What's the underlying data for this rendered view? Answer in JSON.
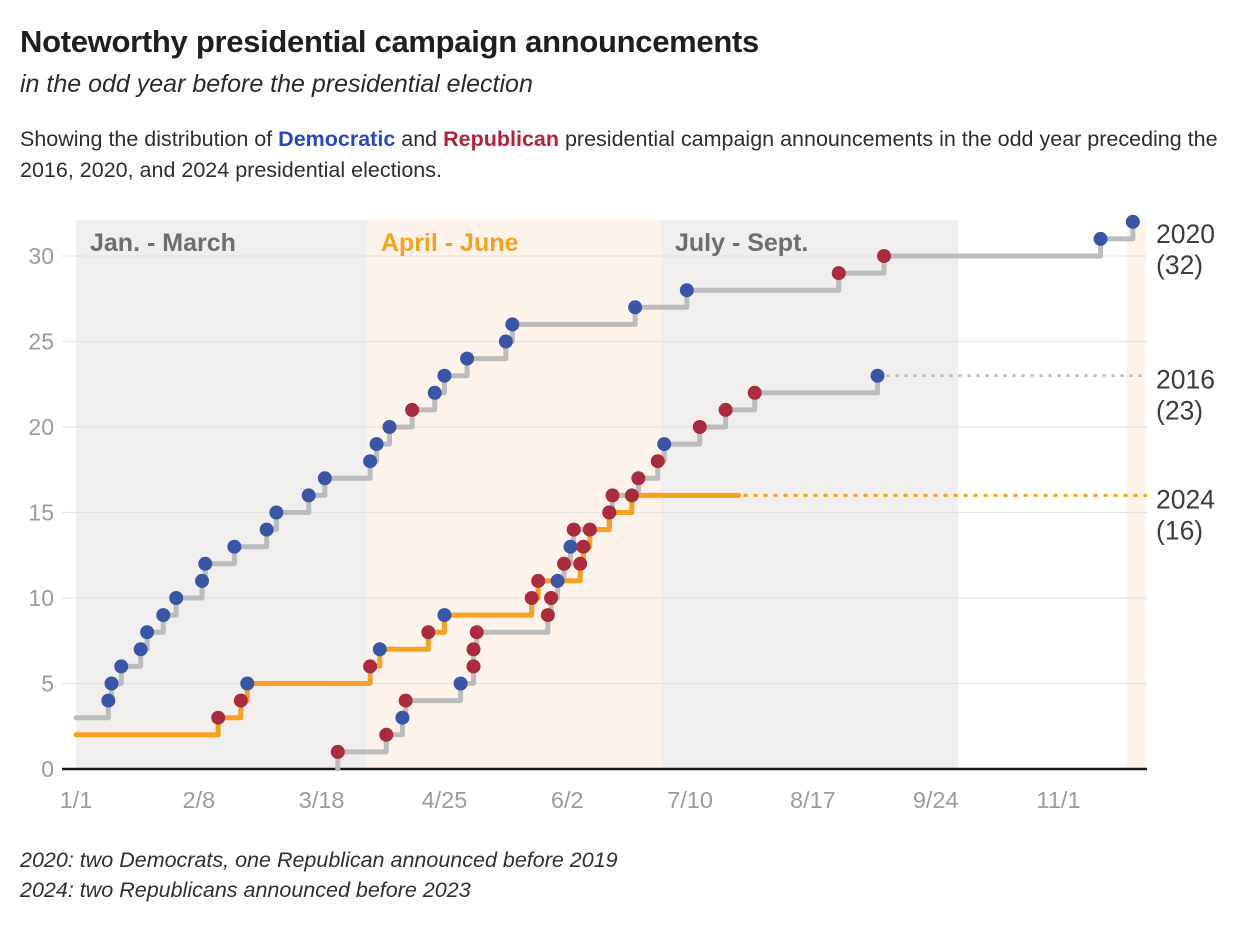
{
  "header": {
    "title": "Noteworthy presidential campaign announcements",
    "subtitle": "in the odd year before the presidential election",
    "description": {
      "part1": "Showing the distribution of ",
      "democratic_word": "Democratic",
      "and_word": " and ",
      "republican_word": "Republican",
      "part2": " presidential campaign announcements in the odd year preceding the 2016, 2020, and 2024 presidential elections."
    }
  },
  "footnotes": {
    "line1": "2020: two Democrats, one Republican announced before 2019",
    "line2": "2024: two Republicans announced before 2023"
  },
  "colors": {
    "democrat_dot": "#3a55a5",
    "republican_dot": "#aa2b3d",
    "gray_line": "#bcbcbc",
    "orange_line": "#f5a122",
    "democratic_text": "#2b47c2",
    "republican_text": "#b3233c",
    "axis_label": "#9b9b9b",
    "band_gray": "#f0efed",
    "band_cream": "#fdf3ea",
    "gridline": "#e3e3e3",
    "axis_line": "#1a1a1a",
    "right_label": "#3d3d3d",
    "band_label_gray": "#6e6e6e"
  },
  "chart_data": {
    "type": "line",
    "subtype": "cumulative-step",
    "x_axis": {
      "ticks": [
        "1/1",
        "2/8",
        "3/18",
        "4/25",
        "6/2",
        "7/10",
        "8/17",
        "9/24",
        "11/1"
      ]
    },
    "y_axis": {
      "ticks": [
        0,
        5,
        10,
        15,
        20,
        25,
        30
      ],
      "range": [
        0,
        32
      ],
      "grid": true
    },
    "bands": [
      {
        "label": "Jan. - March",
        "start": "1/1",
        "end": "4/1",
        "fill": "#f0efed",
        "label_color": "#6e6e6e"
      },
      {
        "label": "April - June",
        "start": "4/1",
        "end": "7/1",
        "fill": "#fdf3ea",
        "label_color": "#f5a122"
      },
      {
        "label": "July - Sept.",
        "start": "7/1",
        "end": "10/1",
        "fill": "#f0efed",
        "label_color": "#6e6e6e"
      },
      {
        "label": "",
        "start": "11/22",
        "end": "11/28",
        "fill": "#fdf3ea",
        "label_color": ""
      }
    ],
    "series": [
      {
        "name": "2020",
        "total": 32,
        "start_value": 3,
        "start_at_left": true,
        "line_color": "#bcbcbc",
        "dashed_to_edge": false,
        "label_line1": "2020",
        "label_line2": "(32)",
        "points": [
          {
            "date": "1/11",
            "party": "D",
            "cumulative": 4
          },
          {
            "date": "1/12",
            "party": "D",
            "cumulative": 5
          },
          {
            "date": "1/15",
            "party": "D",
            "cumulative": 6
          },
          {
            "date": "1/21",
            "party": "D",
            "cumulative": 7
          },
          {
            "date": "1/23",
            "party": "D",
            "cumulative": 8
          },
          {
            "date": "1/28",
            "party": "D",
            "cumulative": 9
          },
          {
            "date": "2/1",
            "party": "D",
            "cumulative": 10
          },
          {
            "date": "2/9",
            "party": "D",
            "cumulative": 11
          },
          {
            "date": "2/10",
            "party": "D",
            "cumulative": 12
          },
          {
            "date": "2/19",
            "party": "D",
            "cumulative": 13
          },
          {
            "date": "3/1",
            "party": "D",
            "cumulative": 14
          },
          {
            "date": "3/4",
            "party": "D",
            "cumulative": 15
          },
          {
            "date": "3/14",
            "party": "D",
            "cumulative": 16
          },
          {
            "date": "3/19",
            "party": "D",
            "cumulative": 17
          },
          {
            "date": "4/2",
            "party": "D",
            "cumulative": 18
          },
          {
            "date": "4/4",
            "party": "D",
            "cumulative": 19
          },
          {
            "date": "4/8",
            "party": "D",
            "cumulative": 20
          },
          {
            "date": "4/15",
            "party": "R",
            "cumulative": 21
          },
          {
            "date": "4/22",
            "party": "D",
            "cumulative": 22
          },
          {
            "date": "4/25",
            "party": "D",
            "cumulative": 23
          },
          {
            "date": "5/2",
            "party": "D",
            "cumulative": 24
          },
          {
            "date": "5/14",
            "party": "D",
            "cumulative": 25
          },
          {
            "date": "5/16",
            "party": "D",
            "cumulative": 26
          },
          {
            "date": "6/23",
            "party": "D",
            "cumulative": 27
          },
          {
            "date": "7/9",
            "party": "D",
            "cumulative": 28
          },
          {
            "date": "8/25",
            "party": "R",
            "cumulative": 29
          },
          {
            "date": "9/8",
            "party": "R",
            "cumulative": 30
          },
          {
            "date": "11/14",
            "party": "D",
            "cumulative": 31
          },
          {
            "date": "11/24",
            "party": "D",
            "cumulative": 32
          }
        ]
      },
      {
        "name": "2016",
        "total": 23,
        "start_value": 0,
        "start_at_left": false,
        "line_color": "#bcbcbc",
        "dashed_to_edge": true,
        "dash_color": "#b8b8b8",
        "label_line1": "2016",
        "label_line2": "(23)",
        "points": [
          {
            "date": "3/23",
            "party": "R",
            "cumulative": 1
          },
          {
            "date": "4/7",
            "party": "R",
            "cumulative": 2
          },
          {
            "date": "4/12",
            "party": "D",
            "cumulative": 3
          },
          {
            "date": "4/13",
            "party": "R",
            "cumulative": 4
          },
          {
            "date": "4/30",
            "party": "D",
            "cumulative": 5
          },
          {
            "date": "5/4",
            "party": "R",
            "cumulative": 6
          },
          {
            "date": "5/4",
            "party": "R",
            "cumulative": 7
          },
          {
            "date": "5/5",
            "party": "R",
            "cumulative": 8
          },
          {
            "date": "5/27",
            "party": "R",
            "cumulative": 9
          },
          {
            "date": "5/28",
            "party": "R",
            "cumulative": 10
          },
          {
            "date": "5/30",
            "party": "D",
            "cumulative": 11
          },
          {
            "date": "6/1",
            "party": "R",
            "cumulative": 12
          },
          {
            "date": "6/3",
            "party": "D",
            "cumulative": 13
          },
          {
            "date": "6/4",
            "party": "R",
            "cumulative": 14
          },
          {
            "date": "6/15",
            "party": "R",
            "cumulative": 15
          },
          {
            "date": "6/16",
            "party": "R",
            "cumulative": 16
          },
          {
            "date": "6/24",
            "party": "R",
            "cumulative": 17
          },
          {
            "date": "6/30",
            "party": "R",
            "cumulative": 18
          },
          {
            "date": "7/2",
            "party": "D",
            "cumulative": 19
          },
          {
            "date": "7/13",
            "party": "R",
            "cumulative": 20
          },
          {
            "date": "7/21",
            "party": "R",
            "cumulative": 21
          },
          {
            "date": "7/30",
            "party": "R",
            "cumulative": 22
          },
          {
            "date": "9/6",
            "party": "D",
            "cumulative": 23
          }
        ]
      },
      {
        "name": "2024",
        "total": 16,
        "start_value": 2,
        "start_at_left": true,
        "line_color": "#f5a122",
        "dashed_to_edge": true,
        "dash_color": "#f5a122",
        "solid_end": "7/25",
        "label_line1": "2024",
        "label_line2": "(16)",
        "points": [
          {
            "date": "2/14",
            "party": "R",
            "cumulative": 3
          },
          {
            "date": "2/21",
            "party": "R",
            "cumulative": 4
          },
          {
            "date": "2/23",
            "party": "D",
            "cumulative": 5
          },
          {
            "date": "4/2",
            "party": "R",
            "cumulative": 6
          },
          {
            "date": "4/5",
            "party": "D",
            "cumulative": 7
          },
          {
            "date": "4/20",
            "party": "R",
            "cumulative": 8
          },
          {
            "date": "4/25",
            "party": "D",
            "cumulative": 9
          },
          {
            "date": "5/22",
            "party": "R",
            "cumulative": 10
          },
          {
            "date": "5/24",
            "party": "R",
            "cumulative": 11
          },
          {
            "date": "6/6",
            "party": "R",
            "cumulative": 12
          },
          {
            "date": "6/7",
            "party": "R",
            "cumulative": 13
          },
          {
            "date": "6/9",
            "party": "R",
            "cumulative": 14
          },
          {
            "date": "6/15",
            "party": "R",
            "cumulative": 15
          },
          {
            "date": "6/22",
            "party": "R",
            "cumulative": 16
          }
        ]
      }
    ],
    "legend_position": "right-edge-labels"
  }
}
